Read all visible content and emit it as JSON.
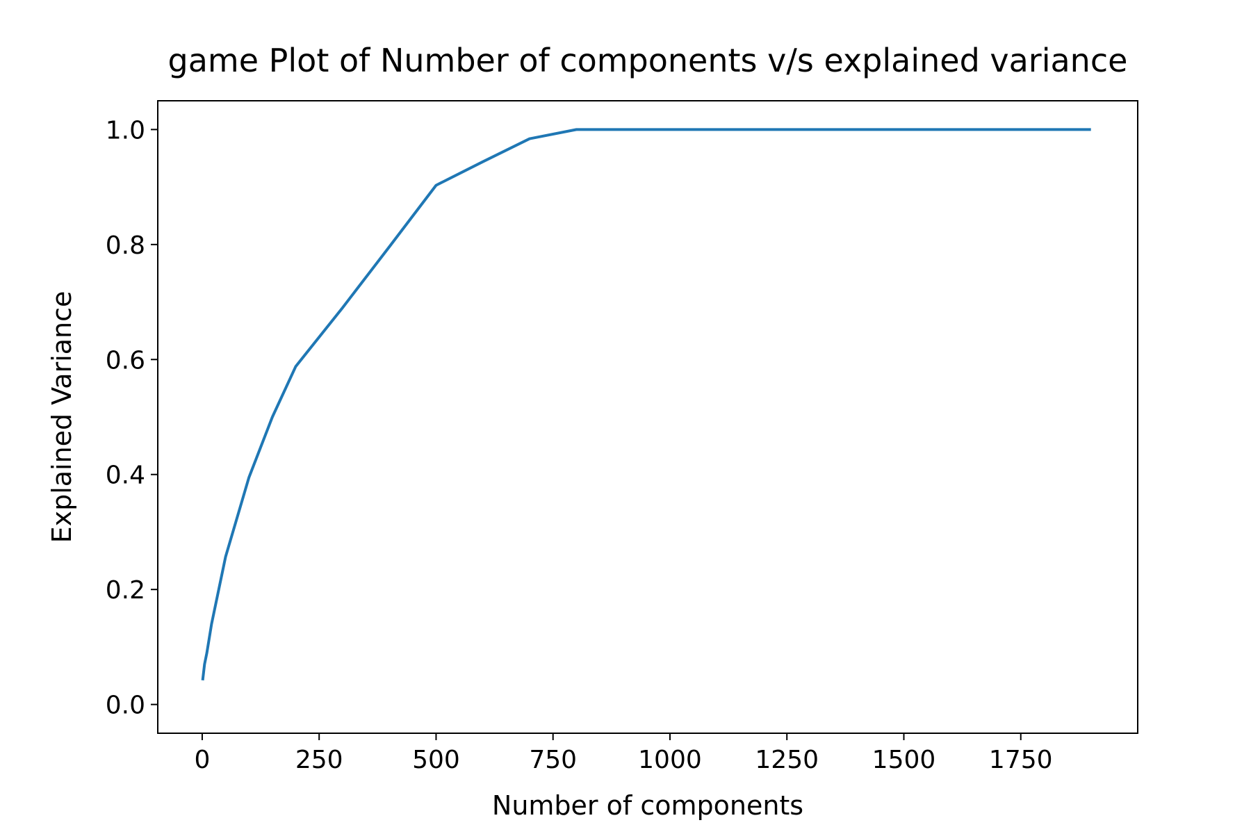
{
  "chart_data": {
    "type": "line",
    "title": "game Plot of Number of components v/s explained variance",
    "xlabel": "Number of components",
    "ylabel": "Explained Variance",
    "xlim": [
      -95,
      2000
    ],
    "ylim": [
      -0.05,
      1.05
    ],
    "xticks": [
      0,
      250,
      500,
      750,
      1000,
      1250,
      1500,
      1750
    ],
    "yticks": [
      0.0,
      0.2,
      0.4,
      0.6,
      0.8,
      1.0
    ],
    "ytick_labels": [
      "0.0",
      "0.2",
      "0.4",
      "0.6",
      "0.8",
      "1.0"
    ],
    "grid": false,
    "legend": "none",
    "series": [
      {
        "color": "#1f77b4",
        "x": [
          1,
          5,
          10,
          20,
          50,
          100,
          150,
          200,
          300,
          400,
          500,
          600,
          700,
          800,
          900,
          1000,
          1100,
          1200,
          1300,
          1400,
          1500,
          1600,
          1700,
          1800,
          1900
        ],
        "y": [
          0.042,
          0.07,
          0.09,
          0.14,
          0.257,
          0.395,
          0.5,
          0.588,
          0.69,
          0.796,
          0.903,
          0.944,
          0.984,
          1.0,
          1.0,
          1.0,
          1.0,
          1.0,
          1.0,
          1.0,
          1.0,
          1.0,
          1.0,
          1.0,
          1.0
        ]
      }
    ]
  }
}
